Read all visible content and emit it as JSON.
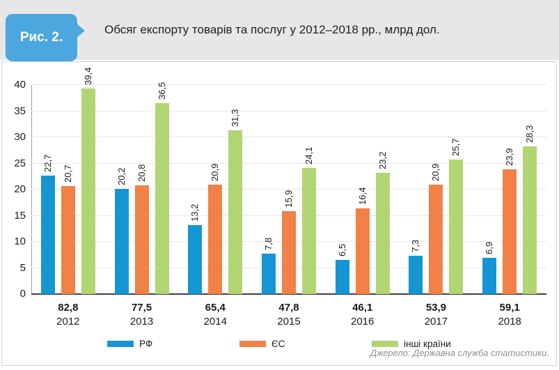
{
  "header": {
    "figure_label": "Рис. 2.",
    "title": "Обсяг експорту товарів та послуг у 2012–2018 рр., млрд дол."
  },
  "colors": {
    "badge": "#4ba7dd",
    "series_rf": "#1695d3",
    "series_eu": "#f28147",
    "series_other": "#b1d573",
    "gridline": "#e8e8e8",
    "axis": "#3f3f3f"
  },
  "chart_data": {
    "type": "bar",
    "title": "Обсяг експорту товарів та послуг у 2012–2018 рр., млрд дол.",
    "categories": [
      "2012",
      "2013",
      "2014",
      "2015",
      "2016",
      "2017",
      "2018"
    ],
    "category_totals": [
      "82,8",
      "77,5",
      "65,4",
      "47,8",
      "46,1",
      "53,9",
      "59,1"
    ],
    "series": [
      {
        "name": "РФ",
        "color": "#1695d3",
        "values": [
          22.7,
          20.2,
          13.2,
          7.8,
          6.5,
          7.3,
          6.9
        ]
      },
      {
        "name": "ЄС",
        "color": "#f28147",
        "values": [
          20.7,
          20.8,
          20.9,
          15.9,
          16.4,
          20.9,
          23.9
        ]
      },
      {
        "name": "інші країни",
        "color": "#b1d573",
        "values": [
          39.4,
          36.5,
          31.3,
          24.1,
          23.2,
          25.7,
          28.3
        ]
      }
    ],
    "ylim": [
      0,
      40
    ],
    "ytick_step": 5,
    "grid": true,
    "legend_position": "bottom",
    "value_label_format": "comma-decimal",
    "bar_value_labels_rotated": true
  },
  "source": "Джерело: Державна служба статистики."
}
